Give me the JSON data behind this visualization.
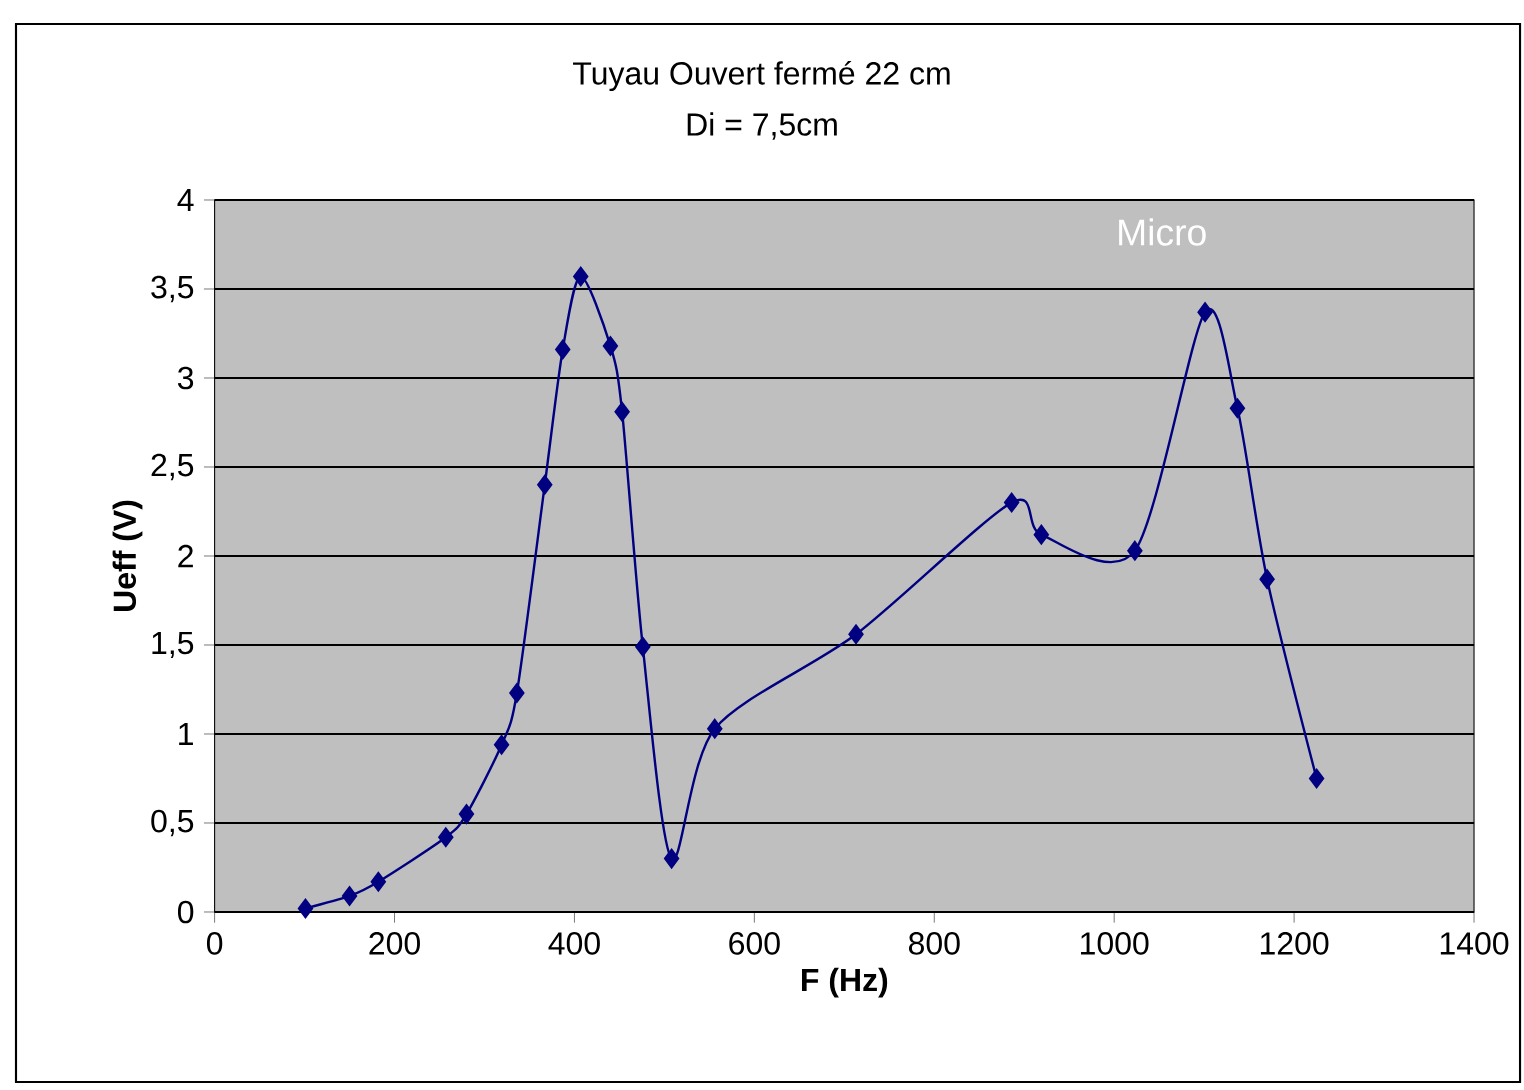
{
  "chart_data": {
    "type": "line",
    "title": "Tuyau Ouvert fermé 22 cm",
    "subtitle": "Di = 7,5cm",
    "xlabel": "F (Hz)",
    "ylabel": "Ueff (V)",
    "annotations": [
      "Micro"
    ],
    "x": [
      101,
      150,
      182,
      257,
      280,
      319,
      336,
      367,
      387,
      407,
      440,
      453,
      476,
      508,
      556,
      713,
      886,
      919,
      1023,
      1101,
      1137,
      1170,
      1225
    ],
    "series": [
      {
        "color": "#000080",
        "values": [
          0.02,
          0.09,
          0.17,
          0.42,
          0.55,
          0.94,
          1.23,
          2.4,
          3.16,
          3.57,
          3.18,
          2.81,
          1.49,
          0.3,
          1.03,
          1.56,
          2.3,
          2.12,
          2.03,
          3.37,
          2.83,
          1.87,
          0.75
        ]
      }
    ],
    "xlim": [
      0,
      1400
    ],
    "ylim": [
      0,
      4
    ],
    "xticks": [
      0,
      200,
      400,
      600,
      800,
      1000,
      1200,
      1400
    ],
    "yticks": [
      0,
      {
        "value": 0.5,
        "label": "0,5"
      },
      1,
      {
        "value": 1.5,
        "label": "1,5"
      },
      2,
      {
        "value": 2.5,
        "label": "2,5"
      },
      3,
      {
        "value": 3.5,
        "label": "3,5"
      },
      4
    ],
    "grid": "y",
    "marker": "diamond",
    "line_style": "solid"
  }
}
